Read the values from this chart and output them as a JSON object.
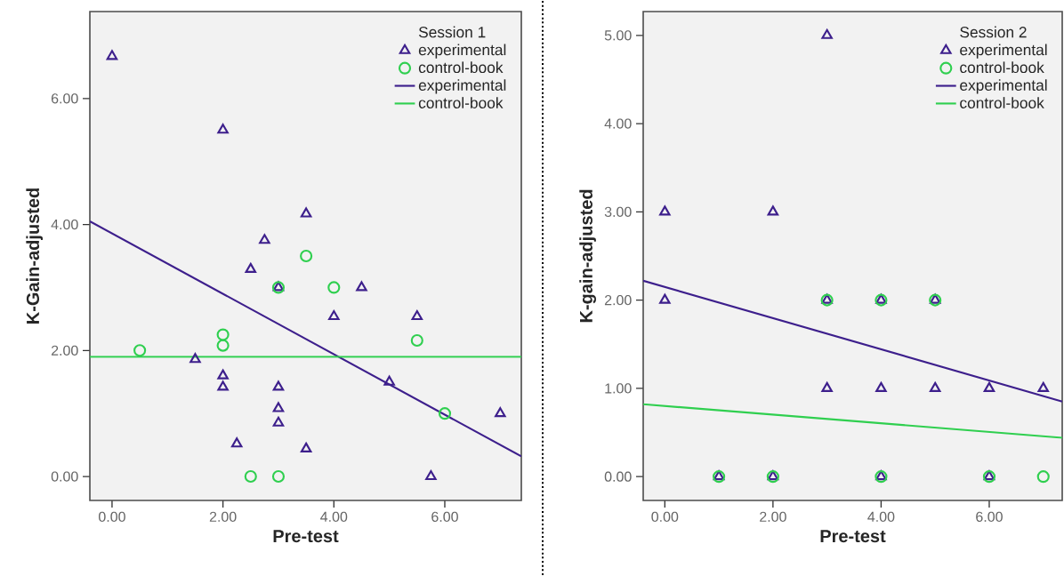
{
  "chart_data": [
    {
      "type": "scatter",
      "legend_title": "Session 1",
      "xlabel": "Pre-test",
      "ylabel": "K-Gain-adjusted",
      "legend": "top right",
      "grid": false,
      "xlim": [
        -0.4,
        7.38
      ],
      "ylim": [
        -0.38,
        7.38
      ],
      "xticks": [
        {
          "value": 0,
          "label": "0.00"
        },
        {
          "value": 2,
          "label": "2.00"
        },
        {
          "value": 4,
          "label": "4.00"
        },
        {
          "value": 6,
          "label": "6.00"
        }
      ],
      "yticks": [
        {
          "value": 0,
          "label": "0.00"
        },
        {
          "value": 2,
          "label": "2.00"
        },
        {
          "value": 4,
          "label": "4.00"
        },
        {
          "value": 6,
          "label": "6.00"
        }
      ],
      "series": [
        {
          "name": "experimental",
          "type": "scatter",
          "marker": "triangle",
          "color": "#3d1f8c",
          "x": [
            0,
            2,
            2.75,
            2.5,
            3.5,
            3,
            4.5,
            4,
            5.5,
            1.5,
            2,
            2,
            3,
            3,
            3,
            2.25,
            3.5,
            5,
            7,
            5.75
          ],
          "values": [
            6.67,
            5.5,
            3.75,
            3.29,
            4.17,
            3.0,
            3.0,
            2.54,
            2.54,
            1.86,
            1.6,
            1.42,
            1.42,
            1.08,
            0.85,
            0.52,
            0.44,
            1.5,
            1.0,
            0.0
          ]
        },
        {
          "name": "control-book",
          "type": "scatter",
          "marker": "circle",
          "color": "#2fcf4f",
          "x": [
            0.5,
            2,
            2,
            3,
            3.5,
            4,
            5.5,
            6,
            2.5,
            3
          ],
          "values": [
            2.0,
            2.25,
            2.08,
            3.0,
            3.5,
            3.0,
            2.16,
            1.0,
            0.0,
            0.0
          ]
        },
        {
          "name": "experimental",
          "type": "line",
          "marker": "none",
          "line_style": "solid",
          "color": "#3d1f8c",
          "x": [
            -0.4,
            7.38
          ],
          "values": [
            4.05,
            0.32
          ]
        },
        {
          "name": "control-book",
          "type": "line",
          "marker": "none",
          "line_style": "solid",
          "color": "#2fcf4f",
          "x": [
            -0.4,
            7.38
          ],
          "values": [
            1.9,
            1.9
          ]
        }
      ]
    },
    {
      "type": "scatter",
      "legend_title": "Session 2",
      "xlabel": "Pre-test",
      "ylabel": "K-gain-adjusted",
      "legend": "top right",
      "grid": false,
      "xlim": [
        -0.4,
        7.35
      ],
      "ylim": [
        -0.27,
        5.27
      ],
      "xticks": [
        {
          "value": 0,
          "label": "0.00"
        },
        {
          "value": 2,
          "label": "2.00"
        },
        {
          "value": 4,
          "label": "4.00"
        },
        {
          "value": 6,
          "label": "6.00"
        }
      ],
      "yticks": [
        {
          "value": 0,
          "label": "0.00"
        },
        {
          "value": 1,
          "label": "1.00"
        },
        {
          "value": 2,
          "label": "2.00"
        },
        {
          "value": 3,
          "label": "3.00"
        },
        {
          "value": 4,
          "label": "4.00"
        },
        {
          "value": 5,
          "label": "5.00"
        }
      ],
      "series": [
        {
          "name": "experimental",
          "type": "scatter",
          "marker": "triangle",
          "color": "#3d1f8c",
          "x": [
            0,
            2,
            3,
            0,
            3,
            4,
            5,
            3,
            4,
            5,
            6,
            7,
            1,
            2,
            4,
            6
          ],
          "values": [
            3,
            3,
            5,
            2,
            2,
            2,
            2,
            1,
            1,
            1,
            1,
            1,
            0,
            0,
            0,
            0
          ]
        },
        {
          "name": "control-book",
          "type": "scatter",
          "marker": "circle",
          "color": "#2fcf4f",
          "x": [
            3,
            4,
            5,
            1,
            2,
            4,
            6,
            7
          ],
          "values": [
            2,
            2,
            2,
            0,
            0,
            0,
            0,
            0
          ]
        },
        {
          "name": "experimental",
          "type": "line",
          "marker": "none",
          "line_style": "solid",
          "color": "#3d1f8c",
          "x": [
            -0.4,
            7.35
          ],
          "values": [
            2.22,
            0.85
          ]
        },
        {
          "name": "control-book",
          "type": "line",
          "marker": "none",
          "line_style": "solid",
          "color": "#2fcf4f",
          "x": [
            -0.4,
            7.35
          ],
          "values": [
            0.82,
            0.44
          ]
        }
      ]
    }
  ]
}
